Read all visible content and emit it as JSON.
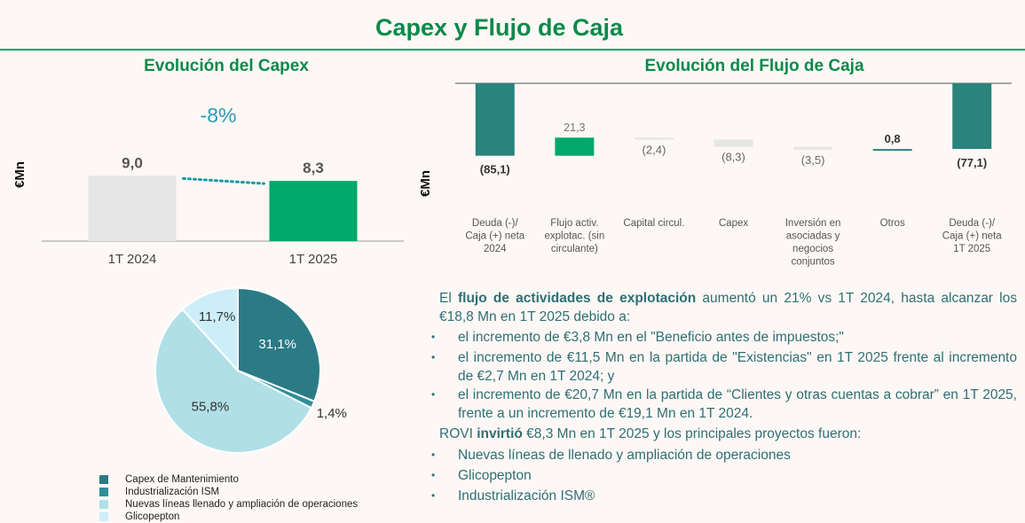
{
  "page_title": "Capex y Flujo de Caja",
  "capex_section": {
    "title": "Evolución del Capex",
    "unit": "€Mn",
    "change": "-8%"
  },
  "cash_section": {
    "title": "Evolución del Flujo de Caja",
    "unit": "€Mn"
  },
  "colors": {
    "title_green": "#0a8a4a",
    "teal_dark": "#2a837d",
    "green_bright": "#00a86b",
    "grey_bar": "#e6e6e6",
    "text_teal": "#2f6f73",
    "pie_mant": "#2a7b86",
    "pie_ism": "#2e8f99",
    "pie_lineas": "#b0dfe6",
    "pie_glico": "#cceef8"
  },
  "chart_data": [
    {
      "type": "bar",
      "categories": [
        "1T 2024",
        "1T 2025"
      ],
      "values": [
        9.0,
        8.3
      ],
      "value_labels": [
        "9,0",
        "8,3"
      ],
      "annotation": "-8%",
      "ylabel": "€Mn",
      "ylim": [
        0,
        11
      ]
    },
    {
      "type": "bar",
      "subtype": "waterfall",
      "categories": [
        "Deuda (-)/ Caja (+) neta 2024",
        "Flujo activ. explotac. (sin circulante)",
        "Capital circul.",
        "Capex",
        "Inversión en asociadas y negocios conjuntos",
        "Otros",
        "Deuda (-)/ Caja (+) neta 1T 2025"
      ],
      "values": [
        -85.1,
        21.3,
        -2.4,
        -8.3,
        -3.5,
        0.8,
        -77.1
      ],
      "value_labels": [
        "(85,1)",
        "21,3",
        "(2,4)",
        "(8,3)",
        "(3,5)",
        "0,8",
        "(77,1)"
      ],
      "ylabel": "€Mn"
    },
    {
      "type": "pie",
      "labels": [
        "Capex de Mantenimiento",
        "Industrialización ISM",
        "Nuevas líneas llenado y ampliación de operaciones",
        "Glicopepton"
      ],
      "values": [
        31.1,
        1.4,
        55.8,
        11.7
      ],
      "value_labels": [
        "31,1%",
        "1,4%",
        "55,8%",
        "11,7%"
      ]
    }
  ],
  "text": {
    "p1_pre": "El ",
    "p1_bold": "flujo de actividades de explotación",
    "p1_post": " aumentó un 21% vs 1T 2024, hasta alcanzar los €18,8 Mn en 1T 2025 debido a:",
    "bullets_a": [
      "el incremento de €3,8 Mn en el \"Beneficio antes de impuestos;\"",
      "el incremento de €11,5 Mn en la partida de \"Existencias\" en 1T 2025 frente al incremento de €2,7 Mn en 1T 2024; y",
      "el incremento de €20,7 Mn en la partida de “Clientes y otras cuentas a cobrar” en 1T 2025, frente a un incremento de €19,1 Mn en 1T 2024."
    ],
    "p2_pre": "ROVI ",
    "p2_bold": "invirtió",
    "p2_post": " €8,3 Mn en 1T 2025 y los principales proyectos fueron:",
    "bullets_b": [
      "Nuevas líneas de llenado y ampliación de operaciones",
      "Glicopepton",
      "Industrialización ISM®"
    ],
    "bullet_char": "•"
  }
}
